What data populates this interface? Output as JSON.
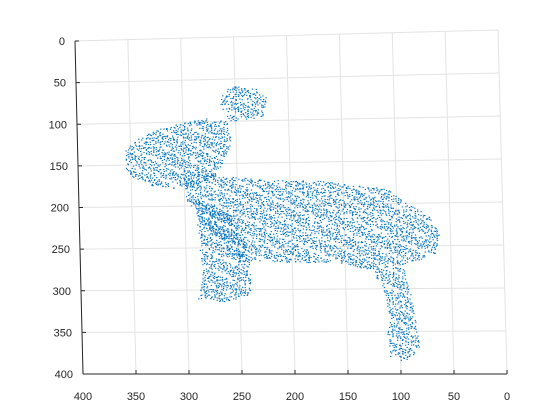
{
  "chart_data": {
    "type": "scatter",
    "title": "",
    "xlabel": "",
    "ylabel": "",
    "colors": {
      "points": "#0072bd",
      "grid": "#e3e3e3",
      "axes": "#262626"
    },
    "grid": true,
    "xlim": [
      0,
      400
    ],
    "ylim": [
      0,
      400
    ],
    "x_direction": "reversed",
    "y_direction": "reversed",
    "x_ticks": [
      400,
      350,
      300,
      250,
      200,
      150,
      100,
      50,
      0
    ],
    "x_tick_labels": [
      "400",
      "350",
      "300",
      "250",
      "200",
      "150",
      "100",
      "50",
      "0"
    ],
    "y_ticks": [
      0,
      50,
      100,
      150,
      200,
      250,
      300,
      350,
      400
    ],
    "y_tick_labels": [
      "0",
      "50",
      "100",
      "150",
      "200",
      "250",
      "300",
      "350",
      "400"
    ],
    "series": [
      {
        "marker_color": "#0072bd",
        "description_regions": [
          {
            "part": "ear",
            "outline": [
              [
                250,
                58
              ],
              [
                232,
                60
              ],
              [
                220,
                72
              ],
              [
                225,
                95
              ],
              [
                255,
                100
              ],
              [
                265,
                80
              ],
              [
                262,
                62
              ]
            ]
          },
          {
            "part": "head",
            "outline": [
              [
                355,
                128
              ],
              [
                345,
                120
              ],
              [
                325,
                108
              ],
              [
                300,
                100
              ],
              [
                275,
                95
              ],
              [
                258,
                100
              ],
              [
                255,
                125
              ],
              [
                270,
                165
              ],
              [
                300,
                180
              ],
              [
                330,
                175
              ],
              [
                355,
                160
              ]
            ]
          },
          {
            "part": "body",
            "outline": [
              [
                300,
                160
              ],
              [
                260,
                165
              ],
              [
                225,
                170
              ],
              [
                170,
                172
              ],
              [
                140,
                178
              ],
              [
                110,
                182
              ],
              [
                90,
                200
              ],
              [
                70,
                215
              ],
              [
                60,
                235
              ],
              [
                65,
                260
              ],
              [
                90,
                270
              ],
              [
                120,
                275
              ],
              [
                160,
                268
              ],
              [
                200,
                268
              ],
              [
                250,
                265
              ],
              [
                280,
                225
              ],
              [
                300,
                190
              ]
            ]
          },
          {
            "part": "front-leg",
            "outline": [
              [
                300,
                190
              ],
              [
                290,
                200
              ],
              [
                288,
                240
              ],
              [
                285,
                280
              ],
              [
                290,
                310
              ],
              [
                265,
                315
              ],
              [
                240,
                305
              ],
              [
                240,
                270
              ],
              [
                245,
                240
              ],
              [
                260,
                205
              ]
            ]
          },
          {
            "part": "hind-leg",
            "outline": [
              [
                150,
                270
              ],
              [
                125,
                278
              ],
              [
                115,
                300
              ],
              [
                110,
                330
              ],
              [
                112,
                355
              ],
              [
                110,
                380
              ],
              [
                95,
                385
              ],
              [
                82,
                370
              ],
              [
                85,
                340
              ],
              [
                90,
                300
              ],
              [
                95,
                275
              ]
            ]
          }
        ]
      }
    ]
  }
}
